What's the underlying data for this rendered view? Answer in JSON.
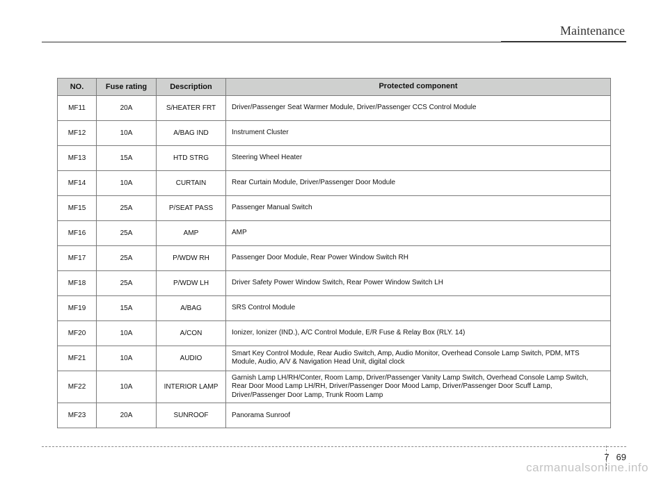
{
  "header": {
    "section_title": "Maintenance"
  },
  "table": {
    "columns": [
      "NO.",
      "Fuse rating",
      "Description",
      "Protected component"
    ],
    "rows": [
      {
        "no": "MF11",
        "rating": "20A",
        "desc": "S/HEATER FRT",
        "prot": "Driver/Passenger Seat Warmer Module, Driver/Passenger CCS Control Module"
      },
      {
        "no": "MF12",
        "rating": "10A",
        "desc": "A/BAG IND",
        "prot": "Instrument Cluster"
      },
      {
        "no": "MF13",
        "rating": "15A",
        "desc": "HTD STRG",
        "prot": "Steering Wheel Heater"
      },
      {
        "no": "MF14",
        "rating": "10A",
        "desc": "CURTAIN",
        "prot": "Rear Curtain Module, Driver/Passenger Door Module"
      },
      {
        "no": "MF15",
        "rating": "25A",
        "desc": "P/SEAT PASS",
        "prot": "Passenger Manual Switch"
      },
      {
        "no": "MF16",
        "rating": "25A",
        "desc": "AMP",
        "prot": "AMP"
      },
      {
        "no": "MF17",
        "rating": "25A",
        "desc": "P/WDW RH",
        "prot": "Passenger Door Module, Rear Power Window Switch RH"
      },
      {
        "no": "MF18",
        "rating": "25A",
        "desc": "P/WDW LH",
        "prot": "Driver Safety Power Window Switch, Rear Power Window Switch LH"
      },
      {
        "no": "MF19",
        "rating": "15A",
        "desc": "A/BAG",
        "prot": "SRS Control Module"
      },
      {
        "no": "MF20",
        "rating": "10A",
        "desc": "A/CON",
        "prot": "Ionizer, Ionizer (IND.), A/C Control Module, E/R Fuse & Relay Box (RLY. 14)"
      },
      {
        "no": "MF21",
        "rating": "10A",
        "desc": "AUDIO",
        "prot": "Smart Key Control Module, Rear Audio Switch, Amp, Audio Monitor, Overhead Console Lamp Switch, PDM, MTS Module, Audio, A/V & Navigation Head Unit, digital clock"
      },
      {
        "no": "MF22",
        "rating": "10A",
        "desc": "INTERIOR LAMP",
        "prot": "Garnish Lamp LH/RH/Conter, Room Lamp, Driver/Passenger Vanity Lamp Switch, Overhead Console Lamp Switch, Rear Door Mood Lamp LH/RH, Driver/Passenger Door Mood Lamp, Driver/Passenger Door Scuff Lamp, Driver/Passenger Door Lamp, Trunk Room Lamp"
      },
      {
        "no": "MF23",
        "rating": "20A",
        "desc": "SUNROOF",
        "prot": "Panorama Sunroof"
      }
    ],
    "header_bg": "#cfd0cf",
    "border_color": "#7a7a7a",
    "font_size_header": 11,
    "font_size_body": 10
  },
  "footer": {
    "page_section": "7",
    "page_number": "69",
    "watermark": "carmanualsonline.info"
  }
}
